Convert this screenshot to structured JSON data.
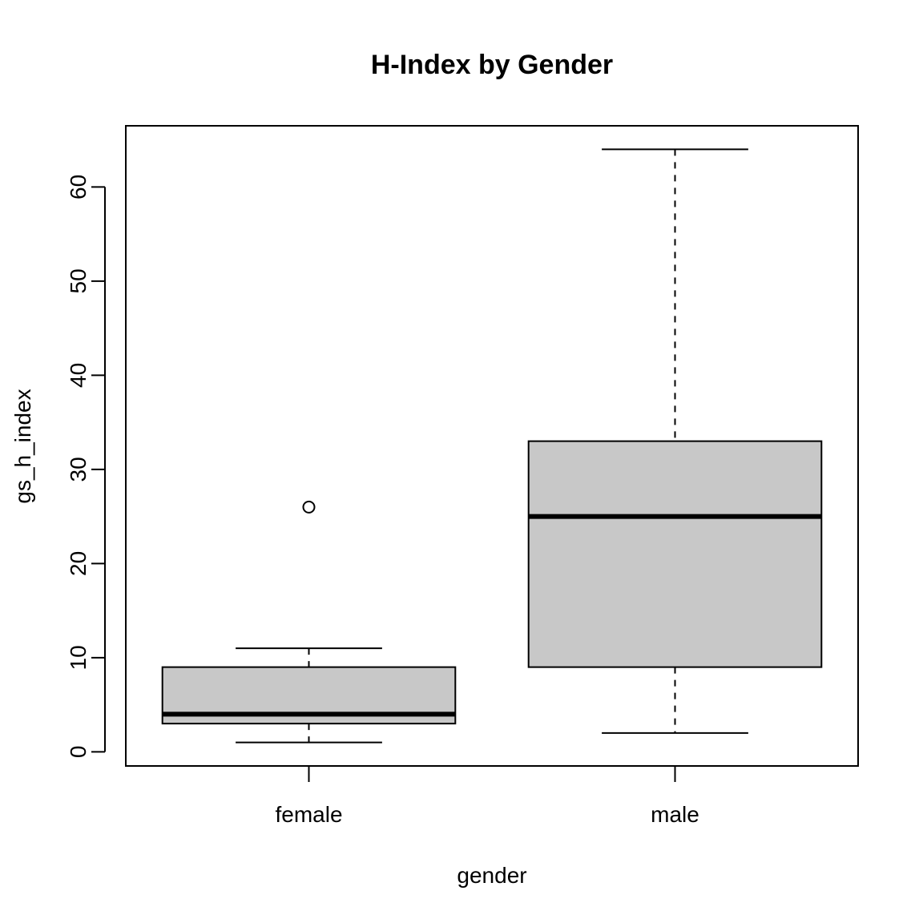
{
  "chart_data": {
    "type": "boxplot",
    "title": "H-Index by Gender",
    "xlabel": "gender",
    "ylabel": "gs_h_index",
    "ylim": [
      -1.5,
      66.5
    ],
    "yticks": [
      0,
      10,
      20,
      30,
      40,
      50,
      60
    ],
    "categories": [
      "female",
      "male"
    ],
    "boxes": [
      {
        "category": "female",
        "whisker_low": 1,
        "q1": 3,
        "median": 4,
        "q3": 9,
        "whisker_high": 11,
        "outliers": [
          26
        ]
      },
      {
        "category": "male",
        "whisker_low": 2,
        "q1": 9,
        "median": 25,
        "q3": 33,
        "whisker_high": 64,
        "outliers": []
      }
    ],
    "box_fill": "#c8c8c8",
    "line_color": "#000000",
    "grid": false,
    "legend": "none"
  }
}
